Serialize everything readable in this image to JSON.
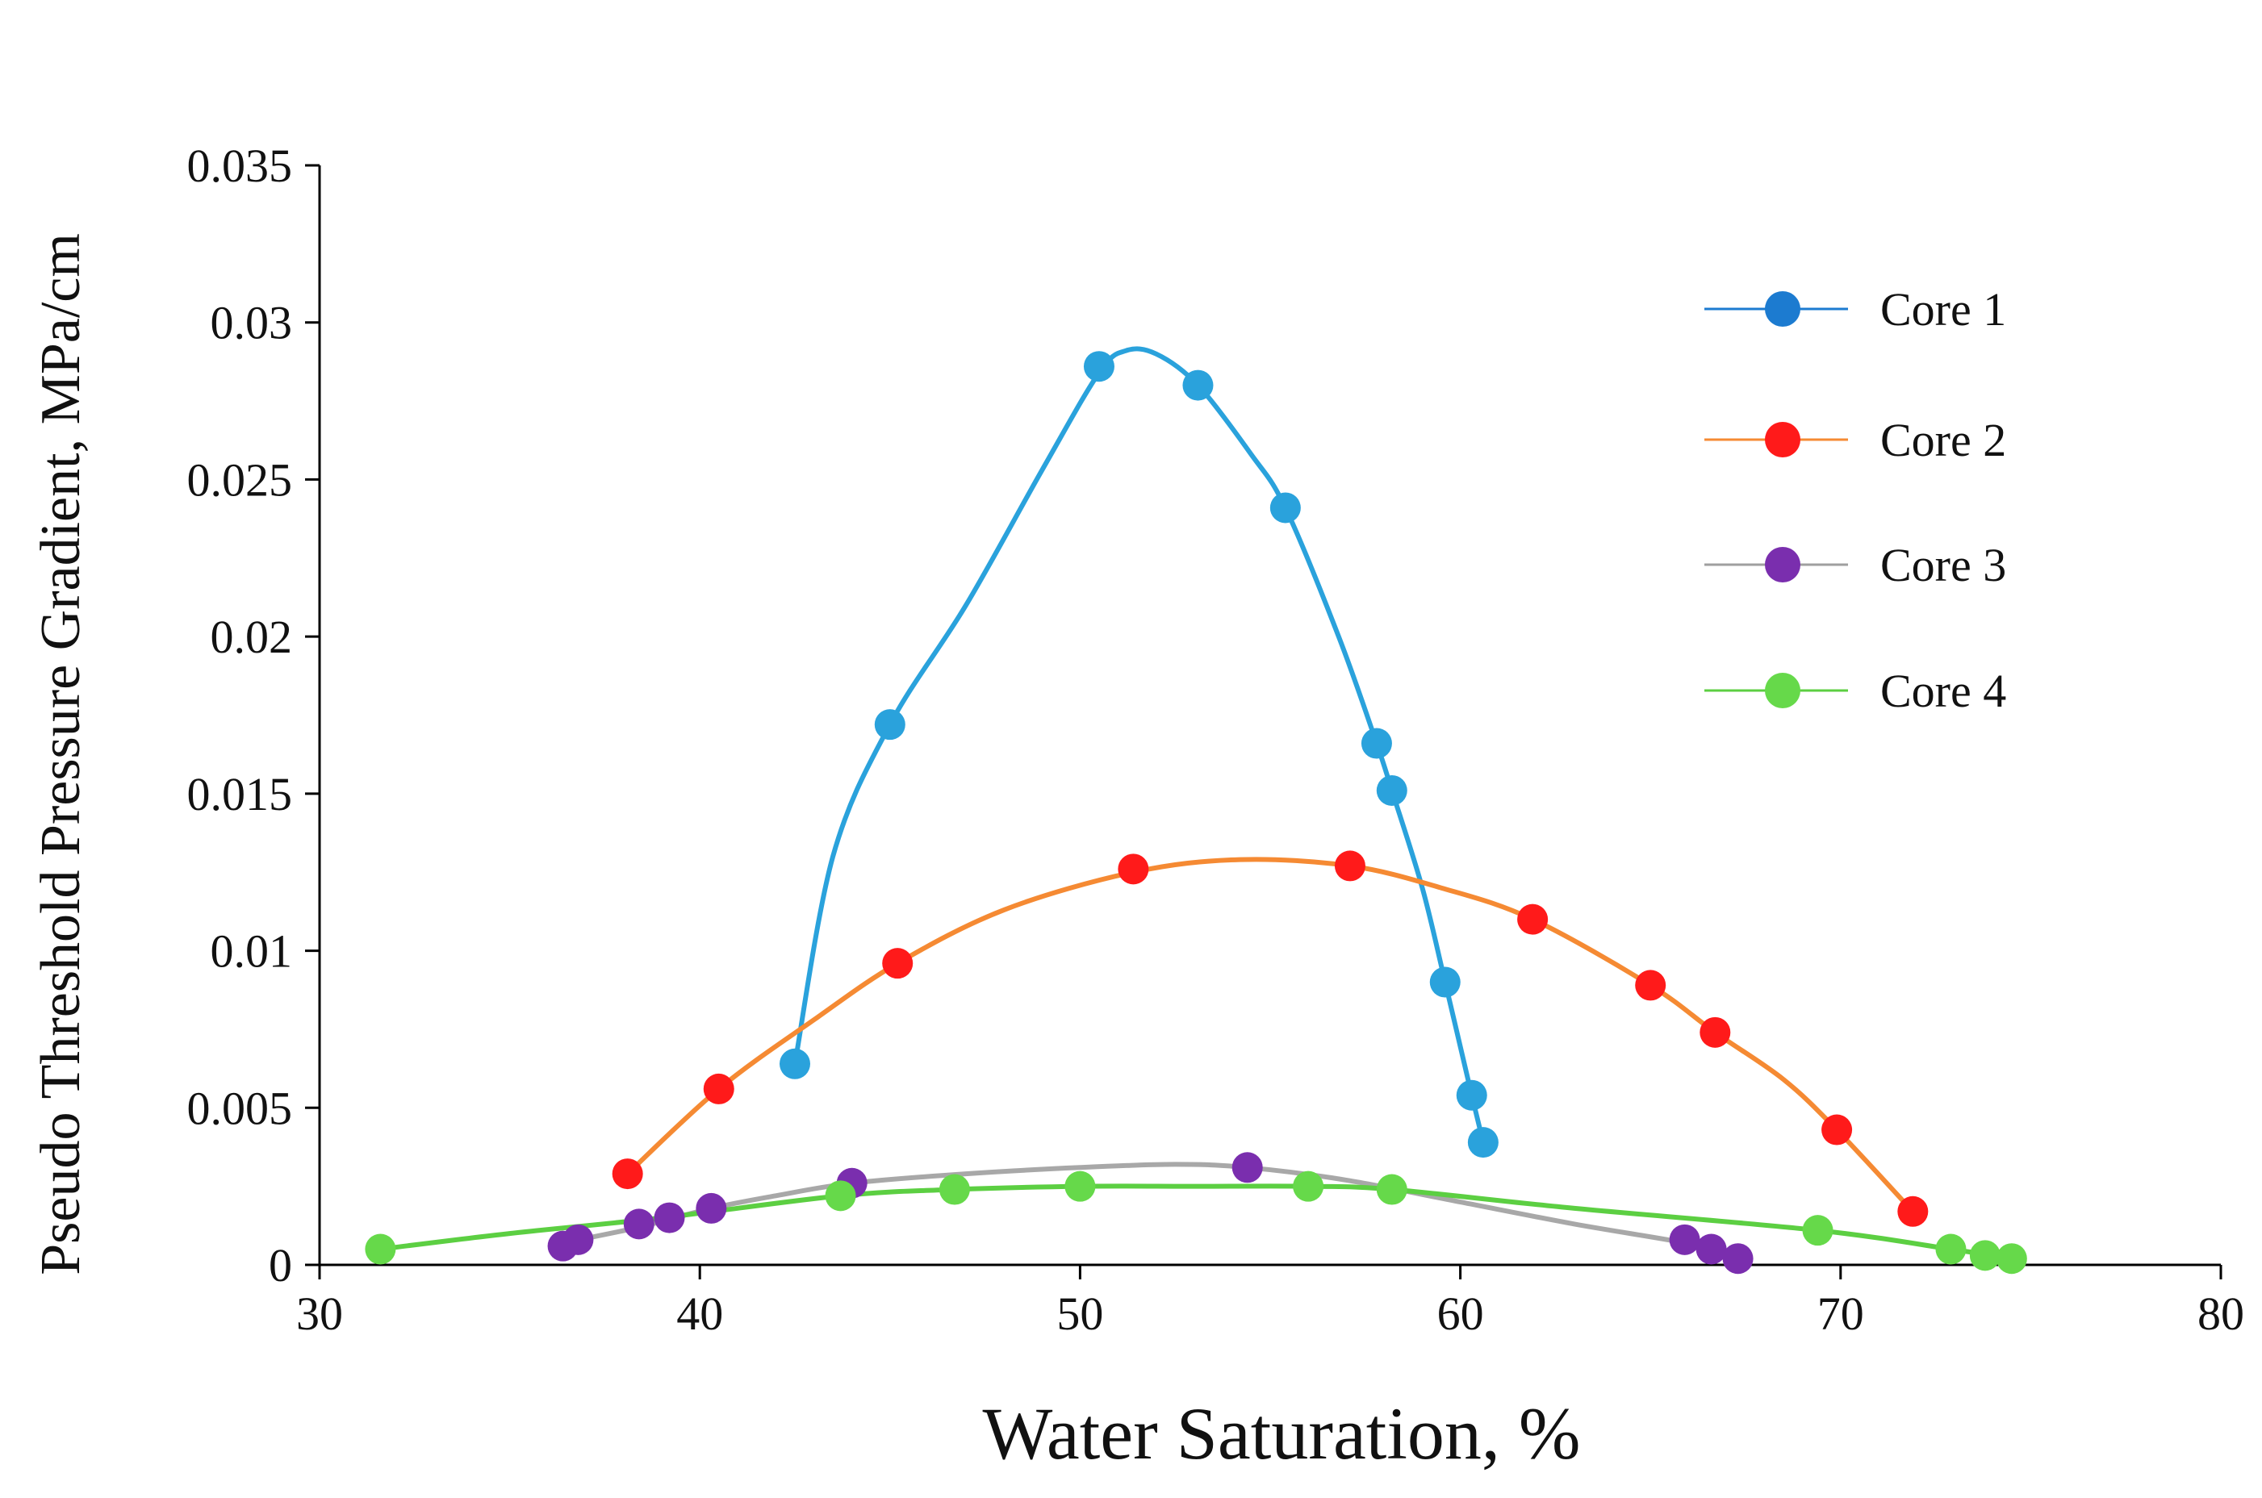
{
  "chart_data": {
    "type": "scatter",
    "title": "",
    "xlabel": "Water Saturation, %",
    "ylabel": "Pseudo Threshold Pressure Gradient, MPa/cm",
    "xlim": [
      30,
      80
    ],
    "ylim": [
      0,
      0.035
    ],
    "x_ticks": [
      30,
      40,
      50,
      60,
      70,
      80
    ],
    "x_tick_labels": [
      "30",
      "40",
      "50",
      "60",
      "70",
      "80"
    ],
    "y_ticks": [
      0,
      0.005,
      0.01,
      0.015,
      0.02,
      0.025,
      0.03,
      0.035
    ],
    "y_tick_labels": [
      "0",
      "0.005",
      "0.01",
      "0.015",
      "0.02",
      "0.025",
      "0.03",
      "0.035"
    ],
    "grid": false,
    "legend_position": "right",
    "series": [
      {
        "name": "Core 1",
        "legend_marker_color": "#1c7bd0",
        "legend_line_color": "#1c7bd0",
        "line_color": "#2aa2dc",
        "marker_color": "#2aa2dc",
        "x": [
          42.5,
          45.0,
          50.5,
          53.1,
          55.4,
          57.8,
          58.2,
          59.6,
          60.3,
          60.6
        ],
        "y": [
          0.0064,
          0.0172,
          0.0286,
          0.028,
          0.0241,
          0.0166,
          0.0151,
          0.009,
          0.0054,
          0.0039
        ],
        "fit_x": [
          42.5,
          43.5,
          45.0,
          47.0,
          49.0,
          50.5,
          51.2,
          52.0,
          53.1,
          54.5,
          55.4,
          56.8,
          57.8,
          58.2,
          59.0,
          59.6,
          60.3,
          60.6
        ],
        "fit_y": [
          0.0064,
          0.013,
          0.0172,
          0.021,
          0.0253,
          0.0284,
          0.0291,
          0.029,
          0.028,
          0.0258,
          0.0241,
          0.02,
          0.0166,
          0.0151,
          0.012,
          0.009,
          0.0054,
          0.0039
        ]
      },
      {
        "name": "Core 2",
        "legend_marker_color": "#ff1a1a",
        "legend_line_color": "#f58a33",
        "line_color": "#f58a33",
        "marker_color": "#ff1a1a",
        "x": [
          38.1,
          40.5,
          45.2,
          51.4,
          57.1,
          61.9,
          65.0,
          66.7,
          69.9,
          71.9
        ],
        "y": [
          0.0029,
          0.0056,
          0.0096,
          0.0126,
          0.0127,
          0.011,
          0.0089,
          0.0074,
          0.0043,
          0.0017
        ],
        "fit_x": [
          38.1,
          40.5,
          43.0,
          45.2,
          48.0,
          51.4,
          54.2,
          57.1,
          59.5,
          61.9,
          65.0,
          66.7,
          68.5,
          69.9,
          71.9
        ],
        "fit_y": [
          0.0029,
          0.0056,
          0.0078,
          0.0096,
          0.0113,
          0.0125,
          0.0129,
          0.0127,
          0.012,
          0.011,
          0.0089,
          0.0074,
          0.0059,
          0.0043,
          0.0017
        ]
      },
      {
        "name": "Core 3",
        "legend_marker_color": "#7a2eae",
        "legend_line_color": "#9f9f9f",
        "line_color": "#a8a8a8",
        "marker_color": "#7a2eae",
        "x": [
          36.4,
          36.8,
          38.4,
          39.2,
          40.3,
          44.0,
          54.4,
          65.9,
          66.6,
          67.3
        ],
        "y": [
          0.0006,
          0.0008,
          0.0013,
          0.0015,
          0.0018,
          0.0026,
          0.0031,
          0.0008,
          0.0005,
          0.0002
        ],
        "fit_x": [
          36.4,
          38.4,
          40.3,
          42.0,
          44.0,
          47.0,
          50.0,
          52.5,
          54.4,
          57.0,
          60.0,
          63.0,
          65.9,
          67.3
        ],
        "fit_y": [
          0.0007,
          0.0012,
          0.0018,
          0.0022,
          0.0026,
          0.0029,
          0.0031,
          0.0032,
          0.0031,
          0.0027,
          0.002,
          0.0013,
          0.0007,
          0.0003
        ]
      },
      {
        "name": "Core 4",
        "legend_marker_color": "#66d94a",
        "legend_line_color": "#5ccf42",
        "line_color": "#5ccf42",
        "marker_color": "#66d94a",
        "x": [
          31.6,
          43.7,
          46.7,
          50.0,
          56.0,
          58.2,
          69.4,
          72.9,
          73.8,
          74.5
        ],
        "y": [
          0.0005,
          0.0022,
          0.0024,
          0.0025,
          0.0025,
          0.0024,
          0.0011,
          0.0005,
          0.0003,
          0.0002
        ],
        "fit_x": [
          31.6,
          35.0,
          39.0,
          43.7,
          46.7,
          50.0,
          53.0,
          56.0,
          58.2,
          63.0,
          69.4,
          72.9,
          74.5
        ],
        "fit_y": [
          0.0005,
          0.001,
          0.0015,
          0.0022,
          0.0024,
          0.0025,
          0.0025,
          0.0025,
          0.0024,
          0.0018,
          0.0011,
          0.0005,
          0.0002
        ]
      }
    ]
  }
}
